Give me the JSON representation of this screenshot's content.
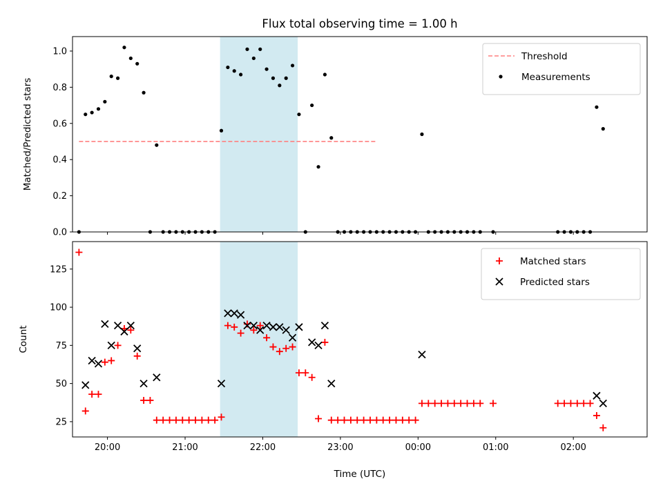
{
  "chart_data": [
    {
      "type": "scatter",
      "title": "Flux total observing time = 1.00 h",
      "xlabel": "",
      "ylabel": "Matched/Predicted stars",
      "ylim": [
        0,
        1.08
      ],
      "yticks": [
        0.0,
        0.2,
        0.4,
        0.6,
        0.8,
        1.0
      ],
      "ytick_labels": [
        "0.0",
        "0.2",
        "0.4",
        "0.6",
        "0.8",
        "1.0"
      ],
      "x_range": [
        "19:33",
        "02:57"
      ],
      "xticks": [
        "20:00",
        "21:00",
        "22:00",
        "23:00",
        "00:00",
        "01:00",
        "02:00"
      ],
      "highlight_span": [
        "21:27",
        "22:27"
      ],
      "highlight_color": "#add8e6",
      "legend_position": "top-right",
      "series": [
        {
          "name": "Threshold",
          "style": "dashed-line",
          "color": "#ff7f7f",
          "x": [
            "19:38",
            "23:28"
          ],
          "y": [
            0.5,
            0.5
          ]
        },
        {
          "name": "Measurements",
          "style": "dot",
          "color": "#000000",
          "x": [
            "19:38",
            "19:43",
            "19:48",
            "19:53",
            "19:58",
            "20:03",
            "20:08",
            "20:13",
            "20:18",
            "20:23",
            "20:28",
            "20:33",
            "20:38",
            "20:43",
            "20:48",
            "20:53",
            "20:58",
            "21:03",
            "21:08",
            "21:13",
            "21:18",
            "21:23",
            "21:28",
            "21:33",
            "21:38",
            "21:43",
            "21:48",
            "21:53",
            "21:58",
            "22:03",
            "22:08",
            "22:13",
            "22:18",
            "22:23",
            "22:28",
            "22:33",
            "22:38",
            "22:43",
            "22:48",
            "22:53",
            "22:58",
            "23:03",
            "23:08",
            "23:13",
            "23:18",
            "23:23",
            "23:28",
            "23:33",
            "23:38",
            "23:43",
            "23:48",
            "23:53",
            "23:58",
            "00:03",
            "00:08",
            "00:13",
            "00:18",
            "00:23",
            "00:28",
            "00:33",
            "00:38",
            "00:43",
            "00:48",
            "00:58",
            "01:48",
            "01:53",
            "01:58",
            "02:03",
            "02:08",
            "02:13",
            "02:18",
            "02:23"
          ],
          "y": [
            0.0,
            0.65,
            0.66,
            0.68,
            0.72,
            0.86,
            0.85,
            1.02,
            0.96,
            0.93,
            0.77,
            0.0,
            0.48,
            0.0,
            0.0,
            0.0,
            0.0,
            0.0,
            0.0,
            0.0,
            0.0,
            0.0,
            0.56,
            0.91,
            0.89,
            0.87,
            1.01,
            0.96,
            1.01,
            0.9,
            0.85,
            0.81,
            0.85,
            0.92,
            0.65,
            0.0,
            0.7,
            0.36,
            0.87,
            0.52,
            0.0,
            0.0,
            0.0,
            0.0,
            0.0,
            0.0,
            0.0,
            0.0,
            0.0,
            0.0,
            0.0,
            0.0,
            0.0,
            0.54,
            0.0,
            0.0,
            0.0,
            0.0,
            0.0,
            0.0,
            0.0,
            0.0,
            0.0,
            0.0,
            0.0,
            0.0,
            0.0,
            0.0,
            0.0,
            0.0,
            0.69,
            0.57
          ]
        }
      ]
    },
    {
      "type": "scatter",
      "title": "",
      "xlabel": "Time (UTC)",
      "ylabel": "Count",
      "ylim": [
        15,
        143
      ],
      "yticks": [
        25,
        50,
        75,
        100,
        125
      ],
      "ytick_labels": [
        "25",
        "50",
        "75",
        "100",
        "125"
      ],
      "x_range": [
        "19:33",
        "02:57"
      ],
      "xticks": [
        "20:00",
        "21:00",
        "22:00",
        "23:00",
        "00:00",
        "01:00",
        "02:00"
      ],
      "highlight_span": [
        "21:27",
        "22:27"
      ],
      "highlight_color": "#add8e6",
      "legend_position": "top-right",
      "series": [
        {
          "name": "Matched stars",
          "style": "plus",
          "color": "#ff0000",
          "x": [
            "19:38",
            "19:43",
            "19:48",
            "19:53",
            "19:58",
            "20:03",
            "20:08",
            "20:13",
            "20:18",
            "20:23",
            "20:28",
            "20:33",
            "20:38",
            "20:43",
            "20:48",
            "20:53",
            "20:58",
            "21:03",
            "21:08",
            "21:13",
            "21:18",
            "21:23",
            "21:28",
            "21:33",
            "21:38",
            "21:43",
            "21:48",
            "21:53",
            "21:58",
            "22:03",
            "22:08",
            "22:13",
            "22:18",
            "22:23",
            "22:28",
            "22:33",
            "22:38",
            "22:43",
            "22:48",
            "22:53",
            "22:58",
            "23:03",
            "23:08",
            "23:13",
            "23:18",
            "23:23",
            "23:28",
            "23:33",
            "23:38",
            "23:43",
            "23:48",
            "23:53",
            "23:58",
            "00:03",
            "00:08",
            "00:13",
            "00:18",
            "00:23",
            "00:28",
            "00:33",
            "00:38",
            "00:43",
            "00:48",
            "00:58",
            "01:48",
            "01:53",
            "01:58",
            "02:03",
            "02:08",
            "02:13",
            "02:18",
            "02:23"
          ],
          "y": [
            136,
            32,
            43,
            43,
            64,
            65,
            75,
            86,
            85,
            68,
            39,
            39,
            26,
            26,
            26,
            26,
            26,
            26,
            26,
            26,
            26,
            26,
            28,
            88,
            87,
            83,
            89,
            85,
            88,
            80,
            74,
            71,
            73,
            74,
            57,
            57,
            54,
            27,
            77,
            26,
            26,
            26,
            26,
            26,
            26,
            26,
            26,
            26,
            26,
            26,
            26,
            26,
            26,
            37,
            37,
            37,
            37,
            37,
            37,
            37,
            37,
            37,
            37,
            37,
            37,
            37,
            37,
            37,
            37,
            37,
            29,
            21
          ]
        },
        {
          "name": "Predicted stars",
          "style": "x",
          "color": "#000000",
          "x": [
            "19:43",
            "19:48",
            "19:53",
            "19:58",
            "20:03",
            "20:08",
            "20:13",
            "20:18",
            "20:23",
            "20:28",
            "20:38",
            "21:28",
            "21:33",
            "21:38",
            "21:43",
            "21:48",
            "21:53",
            "21:58",
            "22:03",
            "22:08",
            "22:13",
            "22:18",
            "22:23",
            "22:28",
            "22:38",
            "22:43",
            "22:48",
            "22:53",
            "00:03",
            "02:18",
            "02:23"
          ],
          "y": [
            49,
            65,
            63,
            89,
            75,
            88,
            84,
            88,
            73,
            50,
            54,
            50,
            96,
            96,
            95,
            88,
            88,
            85,
            88,
            87,
            87,
            85,
            80,
            87,
            77,
            75,
            88,
            50,
            69,
            42,
            37
          ]
        }
      ]
    }
  ]
}
